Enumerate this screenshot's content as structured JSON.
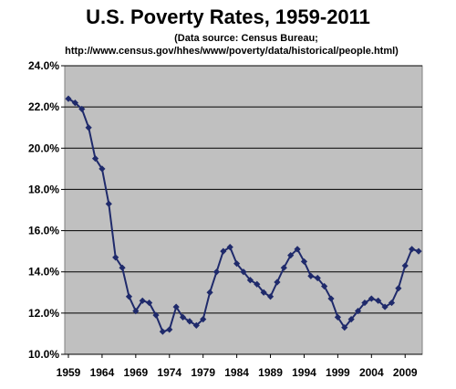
{
  "chart_data": {
    "type": "line",
    "title": "U.S. Poverty Rates, 1959-2011",
    "subtitle_lines": [
      "(Data source: Census Bureau;",
      "http://www.census.gov/hhes/www/poverty/data/historical/people.html)"
    ],
    "xlabel": "",
    "ylabel": "",
    "xlim": [
      1959,
      2011
    ],
    "ylim": [
      10.0,
      24.0
    ],
    "x_ticks": [
      1959,
      1964,
      1969,
      1974,
      1979,
      1984,
      1989,
      1994,
      1999,
      2004,
      2009
    ],
    "x_tick_labels": [
      "1959",
      "1964",
      "1969",
      "1974",
      "1979",
      "1984",
      "1989",
      "1994",
      "1999",
      "2004",
      "2009"
    ],
    "y_ticks": [
      10,
      12,
      14,
      16,
      18,
      20,
      22,
      24
    ],
    "y_tick_labels": [
      "10.0%",
      "12.0%",
      "14.0%",
      "16.0%",
      "18.0%",
      "20.0%",
      "22.0%",
      "24.0%"
    ],
    "grid": "horizontal",
    "plot_background": "#c0c0c0",
    "series_color": "#1f2a6b",
    "marker": "diamond",
    "series": [
      {
        "x": [
          1959,
          1960,
          1961,
          1962,
          1963,
          1964,
          1965,
          1966,
          1967,
          1968,
          1969,
          1970,
          1971,
          1972,
          1973,
          1974,
          1975,
          1976,
          1977,
          1978,
          1979,
          1980,
          1981,
          1982,
          1983,
          1984,
          1985,
          1986,
          1987,
          1988,
          1989,
          1990,
          1991,
          1992,
          1993,
          1994,
          1995,
          1996,
          1997,
          1998,
          1999,
          2000,
          2001,
          2002,
          2003,
          2004,
          2005,
          2006,
          2007,
          2008,
          2009,
          2010,
          2011
        ],
        "values": [
          22.4,
          22.2,
          21.9,
          21.0,
          19.5,
          19.0,
          17.3,
          14.7,
          14.2,
          12.8,
          12.1,
          12.6,
          12.5,
          11.9,
          11.1,
          11.2,
          12.3,
          11.8,
          11.6,
          11.4,
          11.7,
          13.0,
          14.0,
          15.0,
          15.2,
          14.4,
          14.0,
          13.6,
          13.4,
          13.0,
          12.8,
          13.5,
          14.2,
          14.8,
          15.1,
          14.5,
          13.8,
          13.7,
          13.3,
          12.7,
          11.8,
          11.3,
          11.7,
          12.1,
          12.5,
          12.7,
          12.6,
          12.3,
          12.5,
          13.2,
          14.3,
          15.1,
          15.0
        ]
      }
    ]
  }
}
